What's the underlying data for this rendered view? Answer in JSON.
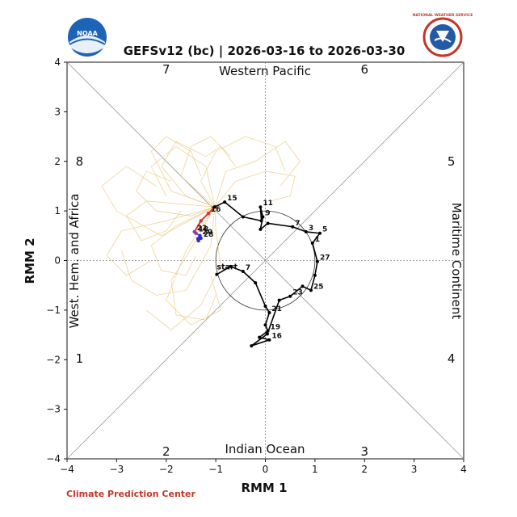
{
  "header": {
    "title": "GEFSv12 (bc) | 2026-03-16 to 2026-03-30",
    "left_logo_text": "NOAA",
    "right_logo_text": "NATIONAL WEATHER SERVICE"
  },
  "footer": {
    "credit": "Climate Prediction Center"
  },
  "colors": {
    "observed": "#000000",
    "ensemble": "#e8c77a",
    "mean_recent": "#d9342b",
    "mean_early": "#2a2ad8",
    "mean_mid": "#8a3bb0",
    "credit": "#c0392b"
  },
  "chart_data": {
    "type": "line",
    "title": "GEFSv12 (bc) | 2026-03-16 to 2026-03-30",
    "xlabel": "RMM 1",
    "ylabel": "RMM 2",
    "xlim": [
      -4,
      4
    ],
    "ylim": [
      -4,
      4
    ],
    "xticks": [
      "−4",
      "−3",
      "−2",
      "−1",
      "0",
      "1",
      "2",
      "3",
      "4"
    ],
    "yticks": [
      "−4",
      "−3",
      "−2",
      "−1",
      "0",
      "1",
      "2",
      "3",
      "4"
    ],
    "grid": false,
    "unit_circle_radius": 1,
    "phase_labels": [
      {
        "text": "1",
        "x": -3.75,
        "y": -1.98
      },
      {
        "text": "2",
        "x": -2.0,
        "y": -3.85
      },
      {
        "text": "3",
        "x": 2.0,
        "y": -3.85
      },
      {
        "text": "4",
        "x": 3.75,
        "y": -1.98
      },
      {
        "text": "5",
        "x": 3.75,
        "y": 2.0
      },
      {
        "text": "6",
        "x": 2.0,
        "y": 3.85
      },
      {
        "text": "7",
        "x": -2.0,
        "y": 3.85
      },
      {
        "text": "8",
        "x": -3.75,
        "y": 2.0
      }
    ],
    "region_labels": {
      "top": "Western Pacific",
      "bottom": "Indian Ocean",
      "left": "West. Hem. and Africa",
      "right": "Maritime Continent"
    },
    "observed": {
      "name": "",
      "points": [
        {
          "x": -0.98,
          "y": -0.28,
          "label": "start"
        },
        {
          "x": -0.7,
          "y": -0.12,
          "label": ""
        },
        {
          "x": -0.45,
          "y": -0.22,
          "label": "7"
        },
        {
          "x": -0.2,
          "y": -0.45,
          "label": ""
        },
        {
          "x": 0.0,
          "y": -0.92,
          "label": ""
        },
        {
          "x": 0.08,
          "y": -1.05,
          "label": "21"
        },
        {
          "x": 0.0,
          "y": -1.3,
          "label": ""
        },
        {
          "x": 0.05,
          "y": -1.42,
          "label": "19"
        },
        {
          "x": -0.12,
          "y": -1.55,
          "label": ""
        },
        {
          "x": 0.08,
          "y": -1.6,
          "label": "16"
        },
        {
          "x": -0.28,
          "y": -1.72,
          "label": ""
        },
        {
          "x": 0.04,
          "y": -1.48,
          "label": ""
        },
        {
          "x": 0.28,
          "y": -0.8,
          "label": ""
        },
        {
          "x": 0.5,
          "y": -0.72,
          "label": "23"
        },
        {
          "x": 0.75,
          "y": -0.52,
          "label": ""
        },
        {
          "x": 0.92,
          "y": -0.6,
          "label": "25"
        },
        {
          "x": 1.0,
          "y": -0.3,
          "label": ""
        },
        {
          "x": 1.05,
          "y": -0.02,
          "label": "27"
        },
        {
          "x": 0.95,
          "y": 0.35,
          "label": "1"
        },
        {
          "x": 1.1,
          "y": 0.55,
          "label": "5"
        },
        {
          "x": 0.82,
          "y": 0.58,
          "label": "3"
        },
        {
          "x": 0.55,
          "y": 0.68,
          "label": "7"
        },
        {
          "x": 0.05,
          "y": 0.75,
          "label": ""
        },
        {
          "x": -0.1,
          "y": 0.63,
          "label": ""
        },
        {
          "x": -0.05,
          "y": 0.88,
          "label": "9"
        },
        {
          "x": -0.1,
          "y": 1.08,
          "label": "11"
        },
        {
          "x": -0.08,
          "y": 0.8,
          "label": ""
        },
        {
          "x": -0.45,
          "y": 0.88,
          "label": ""
        },
        {
          "x": -0.82,
          "y": 1.18,
          "label": "15"
        },
        {
          "x": -1.02,
          "y": 1.08,
          "label": ""
        }
      ]
    },
    "ensemble_mean": {
      "name": "",
      "points": [
        {
          "x": -1.02,
          "y": 1.08,
          "label": ""
        },
        {
          "x": -1.15,
          "y": 0.95,
          "label": "16"
        },
        {
          "x": -1.3,
          "y": 0.8,
          "label": ""
        },
        {
          "x": -1.43,
          "y": 0.58,
          "label": "22"
        },
        {
          "x": -1.4,
          "y": 0.55,
          "label": "18"
        },
        {
          "x": -1.32,
          "y": 0.5,
          "label": "20"
        },
        {
          "x": -1.36,
          "y": 0.44,
          "label": ""
        },
        {
          "x": -1.3,
          "y": 0.45,
          "label": "28"
        },
        {
          "x": -1.35,
          "y": 0.4,
          "label": ""
        }
      ]
    },
    "ensemble_members": [
      [
        [
          -1.02,
          1.08
        ],
        [
          -1.6,
          1.3
        ],
        [
          -2.1,
          1.9
        ],
        [
          -1.8,
          2.4
        ],
        [
          -1.2,
          2.1
        ],
        [
          -0.9,
          2.3
        ],
        [
          -0.6,
          1.9
        ]
      ],
      [
        [
          -1.02,
          1.08
        ],
        [
          -1.5,
          0.9
        ],
        [
          -2.2,
          1.0
        ],
        [
          -2.6,
          1.4
        ],
        [
          -2.4,
          1.8
        ],
        [
          -1.9,
          1.6
        ]
      ],
      [
        [
          -1.02,
          1.08
        ],
        [
          -1.8,
          0.7
        ],
        [
          -2.3,
          0.3
        ],
        [
          -2.1,
          -0.2
        ],
        [
          -1.6,
          -0.3
        ],
        [
          -1.4,
          0.1
        ]
      ],
      [
        [
          -1.02,
          1.08
        ],
        [
          -1.3,
          1.6
        ],
        [
          -1.0,
          2.2
        ],
        [
          -0.4,
          2.5
        ],
        [
          0.2,
          2.3
        ],
        [
          0.4,
          1.8
        ]
      ],
      [
        [
          -1.02,
          1.08
        ],
        [
          -2.0,
          0.8
        ],
        [
          -2.9,
          0.6
        ],
        [
          -3.2,
          0.1
        ],
        [
          -2.8,
          -0.3
        ],
        [
          -2.3,
          0.0
        ]
      ],
      [
        [
          -1.02,
          1.08
        ],
        [
          -1.4,
          0.4
        ],
        [
          -1.9,
          -0.4
        ],
        [
          -1.8,
          -1.1
        ],
        [
          -1.2,
          -1.2
        ],
        [
          -1.0,
          -0.7
        ]
      ],
      [
        [
          -1.02,
          1.08
        ],
        [
          -0.6,
          1.6
        ],
        [
          0.0,
          1.8
        ],
        [
          0.6,
          1.7
        ],
        [
          0.5,
          1.3
        ],
        [
          0.1,
          1.2
        ]
      ],
      [
        [
          -1.02,
          1.08
        ],
        [
          -1.7,
          1.7
        ],
        [
          -1.5,
          2.3
        ],
        [
          -1.1,
          2.5
        ],
        [
          -0.7,
          2.1
        ]
      ],
      [
        [
          -1.02,
          1.08
        ],
        [
          -2.4,
          1.2
        ],
        [
          -2.8,
          0.9
        ],
        [
          -2.5,
          0.4
        ],
        [
          -2.0,
          0.6
        ],
        [
          -1.7,
          1.0
        ]
      ],
      [
        [
          -1.02,
          1.08
        ],
        [
          -1.1,
          0.3
        ],
        [
          -1.6,
          -0.6
        ],
        [
          -2.2,
          -0.7
        ],
        [
          -2.7,
          -0.4
        ],
        [
          -2.9,
          0.2
        ]
      ],
      [
        [
          -1.02,
          1.08
        ],
        [
          -0.8,
          1.8
        ],
        [
          -0.2,
          2.0
        ],
        [
          0.4,
          2.4
        ],
        [
          0.7,
          2.0
        ],
        [
          0.3,
          1.5
        ]
      ],
      [
        [
          -1.02,
          1.08
        ],
        [
          -1.9,
          1.4
        ],
        [
          -2.3,
          2.2
        ],
        [
          -2.0,
          2.5
        ],
        [
          -1.5,
          2.2
        ],
        [
          -1.3,
          1.7
        ]
      ],
      [
        [
          -1.02,
          1.08
        ],
        [
          -1.6,
          0.2
        ],
        [
          -2.0,
          -0.8
        ],
        [
          -1.5,
          -1.3
        ],
        [
          -0.9,
          -1.0
        ],
        [
          -1.1,
          -0.3
        ]
      ],
      [
        [
          -1.02,
          1.08
        ],
        [
          -2.1,
          0.5
        ],
        [
          -3.0,
          1.0
        ],
        [
          -3.3,
          1.5
        ],
        [
          -2.8,
          1.9
        ],
        [
          -2.2,
          1.5
        ]
      ],
      [
        [
          -1.02,
          1.08
        ],
        [
          -1.2,
          1.9
        ],
        [
          -1.8,
          2.3
        ],
        [
          -2.3,
          1.9
        ],
        [
          -2.0,
          1.3
        ]
      ],
      [
        [
          -1.02,
          1.08
        ],
        [
          -1.0,
          0.6
        ],
        [
          -0.9,
          -0.1
        ],
        [
          -1.3,
          -0.9
        ],
        [
          -1.9,
          -1.4
        ],
        [
          -2.4,
          -1.0
        ]
      ]
    ]
  }
}
